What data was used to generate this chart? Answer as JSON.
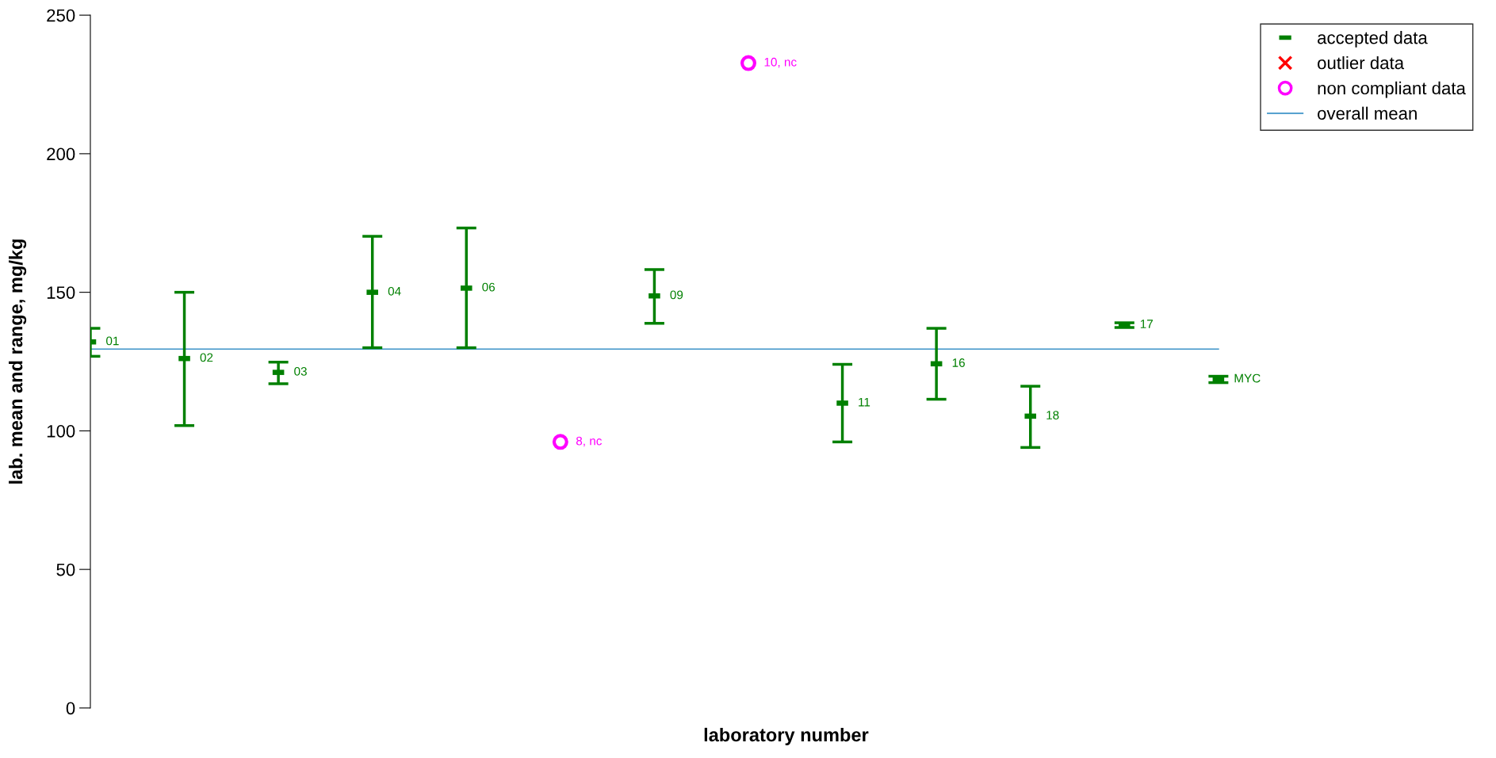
{
  "chart_data": {
    "type": "scatter",
    "xlabel": "laboratory number",
    "ylabel": "lab. mean and range, mg/kg",
    "categories": [
      null,
      null,
      null,
      null,
      null,
      null,
      null,
      null,
      null,
      null,
      null,
      null,
      null
    ],
    "series": [
      {
        "name": "accepted data",
        "color": "#008000",
        "values": [
          132.1,
          126.1,
          121.1,
          150.0,
          151.5,
          null,
          148.7,
          null,
          110.0,
          124.2,
          105.3,
          138.2,
          118.6
        ],
        "errors": [
          [
            126.9,
            137.0
          ],
          [
            101.9,
            150.0
          ],
          [
            117.0,
            124.8
          ],
          [
            130.0,
            170.2
          ],
          [
            130.0,
            173.2
          ],
          null,
          [
            138.8,
            158.2
          ],
          null,
          [
            96.0,
            124.0
          ],
          [
            111.4,
            137.0
          ],
          [
            94.0,
            116.1
          ],
          [
            137.3,
            139.0
          ],
          [
            117.4,
            119.7
          ]
        ]
      },
      {
        "name": "outlier data",
        "color": "#ff0000",
        "marker": "cross",
        "values": [
          null,
          null,
          null,
          null,
          null,
          null,
          null,
          null,
          null,
          null,
          null,
          null,
          null
        ]
      },
      {
        "name": "non compliant data",
        "color": "#ff00ff",
        "marker": "circle",
        "values": [
          null,
          null,
          null,
          null,
          null,
          96.0,
          null,
          232.7,
          null,
          null,
          null,
          null,
          null
        ]
      },
      {
        "name": "overall mean",
        "type": "line",
        "color": "#3c93c8",
        "marker": "none",
        "values": [
          129.5,
          129.5,
          129.5,
          129.5,
          129.5,
          129.5,
          129.5,
          129.5,
          129.5,
          129.5,
          129.5,
          129.5,
          129.5
        ]
      }
    ],
    "annotations": [
      "01",
      "02",
      "03",
      "04",
      "06",
      "8, nc",
      "09",
      "10, nc",
      "11",
      "16",
      "18",
      "17",
      "MYC"
    ],
    "ylim": [
      0,
      250
    ],
    "yticks": [
      0,
      50,
      100,
      150,
      200,
      250
    ],
    "tick_labels": "y",
    "grid": false,
    "legend": "top right"
  }
}
